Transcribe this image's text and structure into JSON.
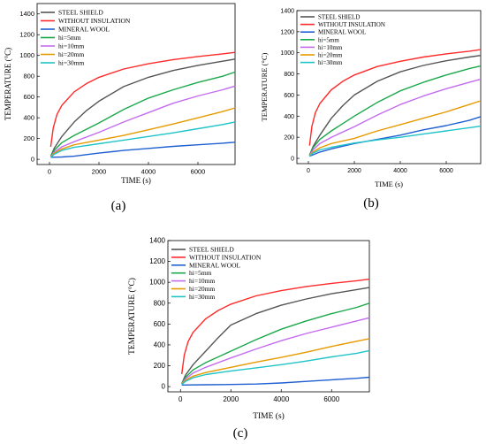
{
  "figure": {
    "panels": [
      {
        "label": "(a)"
      },
      {
        "label": "(b)"
      },
      {
        "label": "(c)"
      }
    ]
  },
  "chart_data": [
    {
      "type": "line",
      "panel": "(a)",
      "xlabel": "TIME (s)",
      "ylabel": "TEMPERATURE (°C)",
      "xlim": [
        -500,
        7500
      ],
      "ylim": [
        -50,
        1500
      ],
      "xticks": [
        0,
        2000,
        4000,
        6000
      ],
      "yticks": [
        0,
        200,
        400,
        600,
        800,
        1000,
        1200,
        1400
      ],
      "legend_position": "top-left",
      "series": [
        {
          "name": "STEEL SHIELD",
          "color": "#555555",
          "x": [
            50,
            200,
            500,
            1000,
            1500,
            2000,
            3000,
            4000,
            5000,
            6000,
            7000,
            7500
          ],
          "y": [
            30,
            110,
            220,
            360,
            470,
            560,
            700,
            790,
            855,
            905,
            945,
            965
          ]
        },
        {
          "name": "WITHOUT INSULATION",
          "color": "#ff2a2a",
          "x": [
            50,
            150,
            300,
            500,
            1000,
            1500,
            2000,
            3000,
            4000,
            5000,
            6000,
            7000,
            7500
          ],
          "y": [
            120,
            300,
            430,
            520,
            650,
            730,
            790,
            870,
            920,
            960,
            990,
            1015,
            1030
          ]
        },
        {
          "name": "MINERAL WOOL",
          "color": "#1f5fd1",
          "x": [
            50,
            500,
            1000,
            1500,
            2000,
            3000,
            4000,
            5000,
            6000,
            7000,
            7500
          ],
          "y": [
            20,
            22,
            30,
            45,
            60,
            85,
            105,
            125,
            140,
            155,
            165
          ]
        },
        {
          "name": "hi=5mm",
          "color": "#1aa84a",
          "x": [
            50,
            200,
            500,
            1000,
            2000,
            3000,
            4000,
            5000,
            6000,
            7000,
            7500
          ],
          "y": [
            30,
            90,
            160,
            230,
            350,
            480,
            590,
            670,
            740,
            800,
            840
          ]
        },
        {
          "name": "hi=10mm",
          "color": "#c46cf0",
          "x": [
            50,
            200,
            500,
            1000,
            2000,
            3000,
            4000,
            5000,
            6000,
            7000,
            7500
          ],
          "y": [
            25,
            70,
            120,
            170,
            260,
            360,
            450,
            540,
            610,
            670,
            705
          ]
        },
        {
          "name": "hi=20mm",
          "color": "#e69a00",
          "x": [
            50,
            200,
            500,
            1000,
            2000,
            3000,
            4000,
            5000,
            6000,
            7000,
            7500
          ],
          "y": [
            25,
            60,
            100,
            140,
            185,
            230,
            285,
            340,
            400,
            460,
            495
          ]
        },
        {
          "name": "hi=30mm",
          "color": "#1fc4c9",
          "x": [
            50,
            200,
            500,
            1000,
            2000,
            3000,
            4000,
            5000,
            6000,
            7000,
            7500
          ],
          "y": [
            20,
            50,
            85,
            115,
            150,
            185,
            220,
            255,
            295,
            335,
            360
          ]
        }
      ]
    },
    {
      "type": "line",
      "panel": "(b)",
      "xlabel": "TIME (s)",
      "ylabel": "TEMPERATURE (°C)",
      "xlim": [
        -500,
        7500
      ],
      "ylim": [
        -50,
        1400
      ],
      "xticks": [
        0,
        2000,
        4000,
        6000
      ],
      "yticks": [
        0,
        200,
        400,
        600,
        800,
        1000,
        1200,
        1400
      ],
      "legend_position": "top-left",
      "series": [
        {
          "name": "STEEL SHIELD",
          "color": "#555555",
          "x": [
            50,
            200,
            500,
            1000,
            1500,
            2000,
            3000,
            4000,
            5000,
            6000,
            7000,
            7500
          ],
          "y": [
            30,
            110,
            220,
            380,
            500,
            600,
            730,
            820,
            880,
            925,
            960,
            975
          ]
        },
        {
          "name": "WITHOUT INSULATION",
          "color": "#ff2a2a",
          "x": [
            50,
            150,
            300,
            500,
            1000,
            1500,
            2000,
            3000,
            4000,
            5000,
            6000,
            7000,
            7500
          ],
          "y": [
            120,
            300,
            430,
            520,
            650,
            730,
            790,
            870,
            920,
            960,
            990,
            1015,
            1030
          ]
        },
        {
          "name": "MINERAL WOOL",
          "color": "#1f5fd1",
          "x": [
            50,
            500,
            1000,
            2000,
            3000,
            4000,
            5000,
            6000,
            7000,
            7500
          ],
          "y": [
            20,
            60,
            90,
            140,
            180,
            220,
            270,
            310,
            360,
            395
          ]
        },
        {
          "name": "hi=5mm",
          "color": "#1aa84a",
          "x": [
            50,
            200,
            500,
            1000,
            2000,
            3000,
            4000,
            5000,
            6000,
            7000,
            7500
          ],
          "y": [
            30,
            100,
            180,
            260,
            400,
            530,
            640,
            720,
            790,
            850,
            875
          ]
        },
        {
          "name": "hi=10mm",
          "color": "#c46cf0",
          "x": [
            50,
            200,
            500,
            1000,
            2000,
            3000,
            4000,
            5000,
            6000,
            7000,
            7500
          ],
          "y": [
            25,
            80,
            140,
            200,
            300,
            410,
            510,
            590,
            660,
            720,
            750
          ]
        },
        {
          "name": "hi=20mm",
          "color": "#e69a00",
          "x": [
            50,
            200,
            500,
            1000,
            2000,
            3000,
            4000,
            5000,
            6000,
            7000,
            7500
          ],
          "y": [
            25,
            60,
            100,
            140,
            190,
            260,
            320,
            380,
            440,
            510,
            545
          ]
        },
        {
          "name": "hi=30mm",
          "color": "#1fc4c9",
          "x": [
            50,
            200,
            500,
            1000,
            2000,
            3000,
            4000,
            5000,
            6000,
            7000,
            7500
          ],
          "y": [
            20,
            50,
            80,
            105,
            145,
            175,
            200,
            230,
            260,
            290,
            305
          ]
        }
      ]
    },
    {
      "type": "line",
      "panel": "(c)",
      "xlabel": "TIME (s)",
      "ylabel": "TEMPERATURE (°C)",
      "xlim": [
        -500,
        7500
      ],
      "ylim": [
        -50,
        1400
      ],
      "xticks": [
        0,
        2000,
        4000,
        6000
      ],
      "yticks": [
        0,
        200,
        400,
        600,
        800,
        1000,
        1200,
        1400
      ],
      "legend_position": "top-left",
      "series": [
        {
          "name": "STEEL SHIELD",
          "color": "#555555",
          "x": [
            50,
            200,
            500,
            1000,
            1500,
            2000,
            3000,
            4000,
            5000,
            6000,
            7000,
            7500
          ],
          "y": [
            30,
            110,
            210,
            340,
            470,
            590,
            700,
            780,
            840,
            890,
            930,
            950
          ]
        },
        {
          "name": "WITHOUT INSULATION",
          "color": "#ff2a2a",
          "x": [
            50,
            150,
            300,
            500,
            1000,
            1500,
            2000,
            3000,
            4000,
            5000,
            6000,
            7000,
            7500
          ],
          "y": [
            120,
            300,
            430,
            520,
            650,
            730,
            790,
            870,
            920,
            960,
            990,
            1015,
            1030
          ]
        },
        {
          "name": "MINERAL WOOL",
          "color": "#1f5fd1",
          "x": [
            50,
            1000,
            2000,
            3000,
            4000,
            5000,
            6000,
            7000,
            7500
          ],
          "y": [
            15,
            18,
            20,
            25,
            35,
            50,
            65,
            80,
            90
          ]
        },
        {
          "name": "hi=5mm",
          "color": "#1aa84a",
          "x": [
            50,
            200,
            500,
            1000,
            2000,
            3000,
            4000,
            5000,
            6000,
            7000,
            7500
          ],
          "y": [
            30,
            90,
            160,
            230,
            340,
            450,
            550,
            630,
            700,
            760,
            800
          ]
        },
        {
          "name": "hi=10mm",
          "color": "#c46cf0",
          "x": [
            50,
            200,
            500,
            1000,
            2000,
            3000,
            4000,
            5000,
            6000,
            7000,
            7500
          ],
          "y": [
            25,
            75,
            130,
            185,
            275,
            360,
            440,
            510,
            570,
            630,
            660
          ]
        },
        {
          "name": "hi=20mm",
          "color": "#e69a00",
          "x": [
            50,
            200,
            500,
            1000,
            2000,
            3000,
            4000,
            5000,
            6000,
            7000,
            7500
          ],
          "y": [
            25,
            60,
            100,
            135,
            185,
            235,
            280,
            330,
            385,
            435,
            460
          ]
        },
        {
          "name": "hi=30mm",
          "color": "#1fc4c9",
          "x": [
            50,
            200,
            500,
            1000,
            2000,
            3000,
            4000,
            5000,
            6000,
            7000,
            7500
          ],
          "y": [
            20,
            50,
            85,
            115,
            150,
            180,
            210,
            245,
            285,
            320,
            345
          ]
        }
      ]
    }
  ]
}
